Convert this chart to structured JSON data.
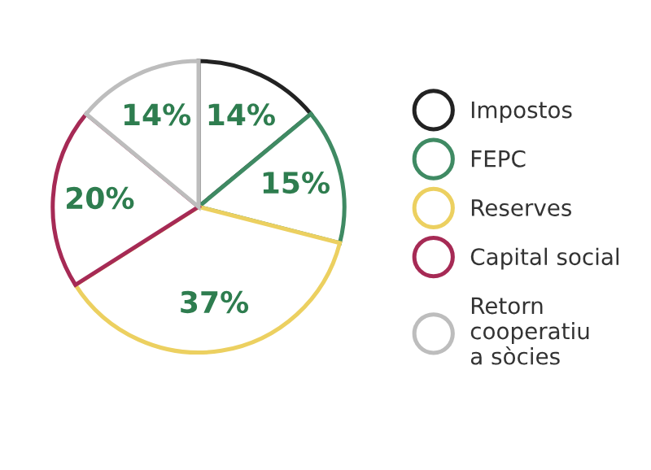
{
  "chart_data": {
    "type": "pie",
    "categories": [
      "Impostos",
      "FEPC",
      "Reserves",
      "Capital social",
      "Retorn\ncooperatiu\na sòcies"
    ],
    "values": [
      14,
      15,
      37,
      20,
      14
    ],
    "colors": [
      "#222222",
      "#3f8a63",
      "#ecd060",
      "#a62a55",
      "#bdbdbd"
    ],
    "value_labels": [
      "14%",
      "15%",
      "37%",
      "20%",
      "14%"
    ],
    "legend": "right"
  }
}
